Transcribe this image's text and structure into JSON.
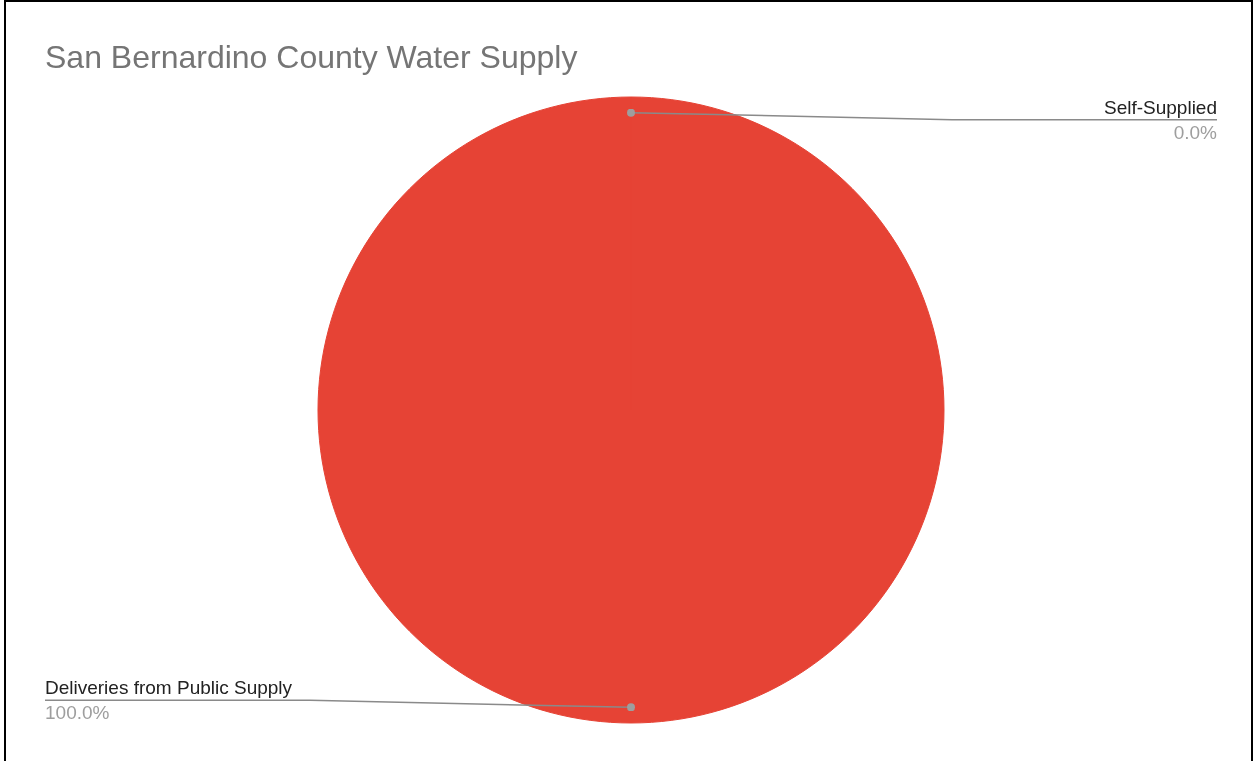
{
  "chart_data": {
    "type": "pie",
    "title": "San Bernardino County Water Supply",
    "categories": [
      "Self-Supplied",
      "Deliveries from Public Supply"
    ],
    "values": [
      0.0,
      100.0
    ],
    "colors": [
      "#4285f4",
      "#e64335"
    ],
    "value_labels": [
      "0.0%",
      "100.0%"
    ]
  }
}
